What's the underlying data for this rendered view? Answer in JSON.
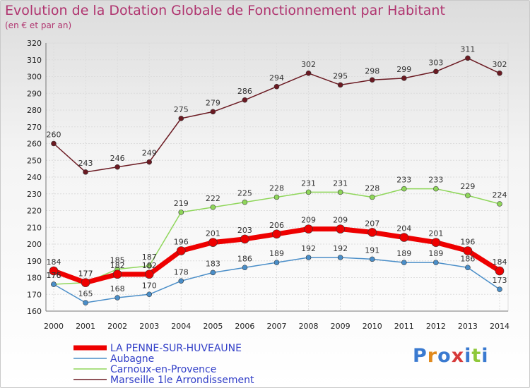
{
  "header": {
    "title": "Evolution de la Dotation Globale de Fonctionnement par Habitant",
    "subtitle": "(en € et par an)"
  },
  "logo": {
    "text": "Proxiti",
    "colors": [
      "#3a7ad0",
      "#e08a1e",
      "#3a7ad0",
      "#d63a3a",
      "#3a7ad0",
      "#8fc83a",
      "#3a7ad0"
    ]
  },
  "chart_data": {
    "type": "line",
    "title": "Evolution de la Dotation Globale de Fonctionnement par Habitant",
    "subtitle": "(en € et par an)",
    "x": [
      "2000",
      "2001",
      "2002",
      "2003",
      "2004",
      "2005",
      "2006",
      "2007",
      "2008",
      "2009",
      "2010",
      "2011",
      "2012",
      "2013",
      "2014"
    ],
    "ylim": [
      160,
      320
    ],
    "yticks": [
      160,
      170,
      180,
      190,
      200,
      210,
      220,
      230,
      240,
      250,
      260,
      270,
      280,
      290,
      300,
      310,
      320
    ],
    "grid": true,
    "legend_position": "bottom-left",
    "series": [
      {
        "name": "Marseille 1le  Arrondissement",
        "color": "#6b1a22",
        "values": [
          260,
          243,
          246,
          249,
          275,
          279,
          286,
          294,
          302,
          295,
          298,
          299,
          303,
          311,
          302
        ]
      },
      {
        "name": "Carnoux-en-Provence",
        "color": "#8fd65a",
        "values": [
          176,
          177,
          185,
          187,
          219,
          222,
          225,
          228,
          231,
          231,
          228,
          233,
          233,
          229,
          224
        ]
      },
      {
        "name": "Aubagne",
        "color": "#4a8ec8",
        "values": [
          176,
          165,
          168,
          170,
          178,
          183,
          186,
          189,
          192,
          192,
          191,
          189,
          189,
          186,
          173
        ]
      },
      {
        "name": "LA PENNE-SUR-HUVEAUNE",
        "color": "#ee0000",
        "values": [
          184,
          177,
          182,
          182,
          196,
          201,
          203,
          206,
          209,
          209,
          207,
          204,
          201,
          196,
          184
        ]
      }
    ]
  }
}
